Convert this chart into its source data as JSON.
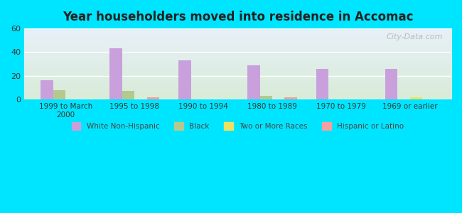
{
  "title": "Year householders moved into residence in Accomac",
  "categories": [
    "1999 to March\n2000",
    "1995 to 1998",
    "1990 to 1994",
    "1980 to 1989",
    "1970 to 1979",
    "1969 or earlier"
  ],
  "series": {
    "White Non-Hispanic": [
      16,
      43,
      33,
      29,
      26,
      26
    ],
    "Black": [
      8,
      7,
      0,
      3,
      0,
      0
    ],
    "Two or More Races": [
      0,
      0,
      0,
      0,
      0,
      2
    ],
    "Hispanic or Latino": [
      0,
      2,
      0,
      2,
      0,
      0
    ]
  },
  "colors": {
    "White Non-Hispanic": "#c9a0dc",
    "Black": "#b5c98e",
    "Two or More Races": "#f0e060",
    "Hispanic or Latino": "#f4a0a0"
  },
  "ylim": [
    0,
    60
  ],
  "yticks": [
    0,
    20,
    40,
    60
  ],
  "background_color": "#00e5ff",
  "plot_bg_top": "#e8f0f8",
  "plot_bg_bottom": "#d8ecd8",
  "watermark": "City-Data.com",
  "bar_width": 0.18
}
